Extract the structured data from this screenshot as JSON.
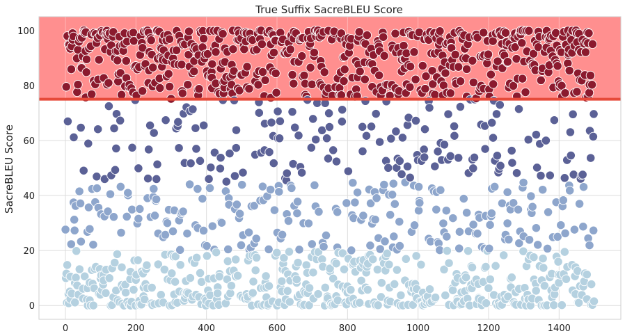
{
  "chart_data": {
    "type": "scatter",
    "title": "True Suffix SacreBLEU Score",
    "xlabel": "",
    "ylabel": "SacreBLEU Score",
    "xlim": [
      -75,
      1575
    ],
    "ylim": [
      -5,
      105
    ],
    "x_ticks": [
      "0",
      "200",
      "400",
      "600",
      "800",
      "1000",
      "1200",
      "1400"
    ],
    "y_ticks": [
      "0",
      "20",
      "40",
      "60",
      "80",
      "100"
    ],
    "grid": true,
    "threshold": {
      "value": 75,
      "color": "#e64a3a"
    },
    "highlight_band": {
      "from": 75,
      "to": 105,
      "color": "#ff8f8f"
    },
    "n_points": 1500,
    "color_bins": [
      {
        "min": 75,
        "max": 100,
        "color": "#8b1a2e"
      },
      {
        "min": 45,
        "max": 75,
        "color": "#5b6196"
      },
      {
        "min": 20,
        "max": 45,
        "color": "#8ea6cc"
      },
      {
        "min": 0,
        "max": 20,
        "color": "#b5d1e0"
      }
    ],
    "distribution_note_free": [
      {
        "y_range": [
          75,
          100
        ],
        "share": 0.42
      },
      {
        "y_range": [
          45,
          75
        ],
        "share": 0.13
      },
      {
        "y_range": [
          20,
          45
        ],
        "share": 0.15
      },
      {
        "y_range": [
          0,
          20
        ],
        "share": 0.3
      }
    ]
  }
}
